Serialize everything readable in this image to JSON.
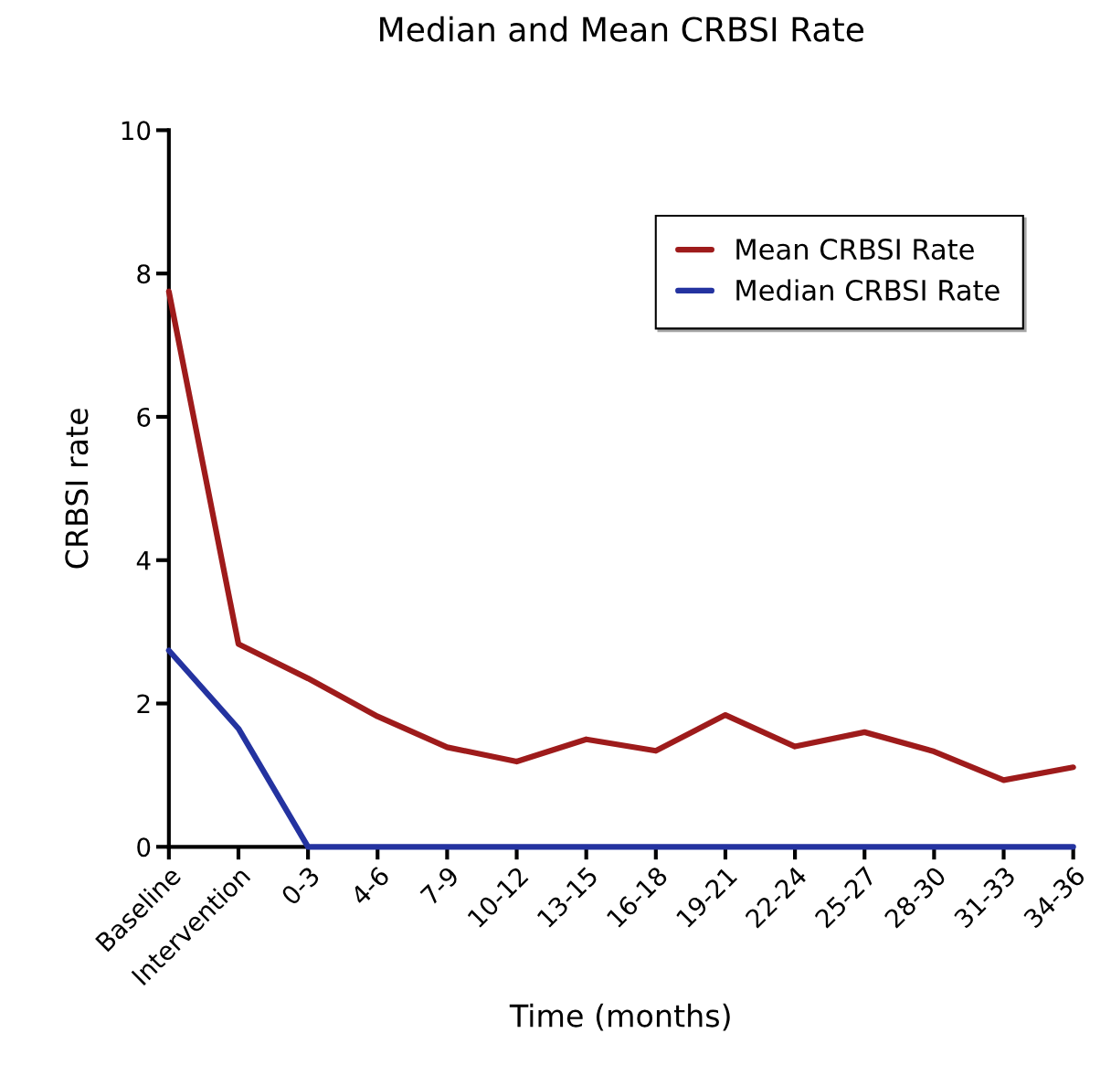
{
  "chart_data": {
    "type": "line",
    "title": "Median and Mean CRBSI Rate",
    "xlabel": "Time (months)",
    "ylabel": "CRBSI rate",
    "categories": [
      "Baseline",
      "Intervention",
      "0-3",
      "4-6",
      "7-9",
      "10-12",
      "13-15",
      "16-18",
      "19-21",
      "22-24",
      "25-27",
      "28-30",
      "31-33",
      "34-36"
    ],
    "series": [
      {
        "name": "Mean CRBSI Rate",
        "color": "#9e1b1b",
        "values": [
          7.75,
          2.83,
          2.35,
          1.82,
          1.39,
          1.19,
          1.5,
          1.34,
          1.84,
          1.4,
          1.6,
          1.33,
          0.93,
          1.11
        ]
      },
      {
        "name": "Median CRBSI Rate",
        "color": "#2433a0",
        "values": [
          2.74,
          1.65,
          0,
          0,
          0,
          0,
          0,
          0,
          0,
          0,
          0,
          0,
          0,
          0
        ]
      }
    ],
    "ylim": [
      0,
      10
    ],
    "yticks": [
      0,
      2,
      4,
      6,
      8,
      10
    ],
    "grid": false,
    "legend": "top right",
    "marker": "none",
    "line_style": "solid"
  }
}
